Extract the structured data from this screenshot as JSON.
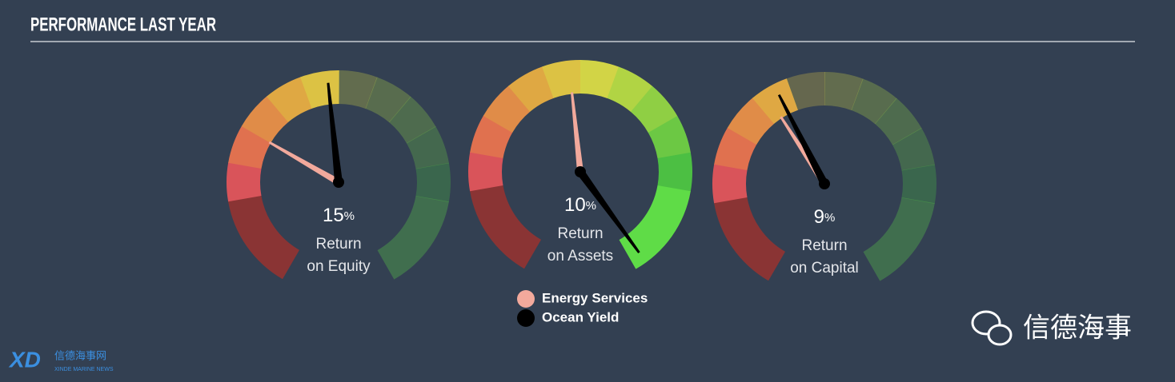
{
  "chart_data": {
    "type": "gauge",
    "title": "PERFORMANCE LAST YEAR",
    "ylim": [
      0,
      100
    ],
    "dial_colors": [
      "#8a3434",
      "#d9545a",
      "#e0714f",
      "#e08c48",
      "#dfa843",
      "#dcc244",
      "#d2d446",
      "#b1d444",
      "#8fcf44",
      "#6cc844",
      "#4cbf43",
      "#5fdc47"
    ],
    "gauges": [
      {
        "value": 15,
        "unit": "%",
        "label_line1": "Return",
        "label_line2": "on Equity"
      },
      {
        "value": 10,
        "unit": "%",
        "label_line1": "Return",
        "label_line2": "on Assets"
      },
      {
        "value": 9,
        "unit": "%",
        "label_line1": "Return",
        "label_line2": "on Capital"
      }
    ],
    "series": [
      {
        "name": "Energy Services",
        "color": "#f2a99c",
        "values": [
          30,
          48,
          39
        ]
      },
      {
        "name": "Ocean Yield",
        "color": "#000000",
        "values": [
          48,
          98,
          41
        ]
      }
    ]
  },
  "watermark": {
    "brand": "信德海事",
    "logo": "XD",
    "logo_cn": "信德海事网",
    "logo_en": "XINDE MARINE NEWS"
  }
}
